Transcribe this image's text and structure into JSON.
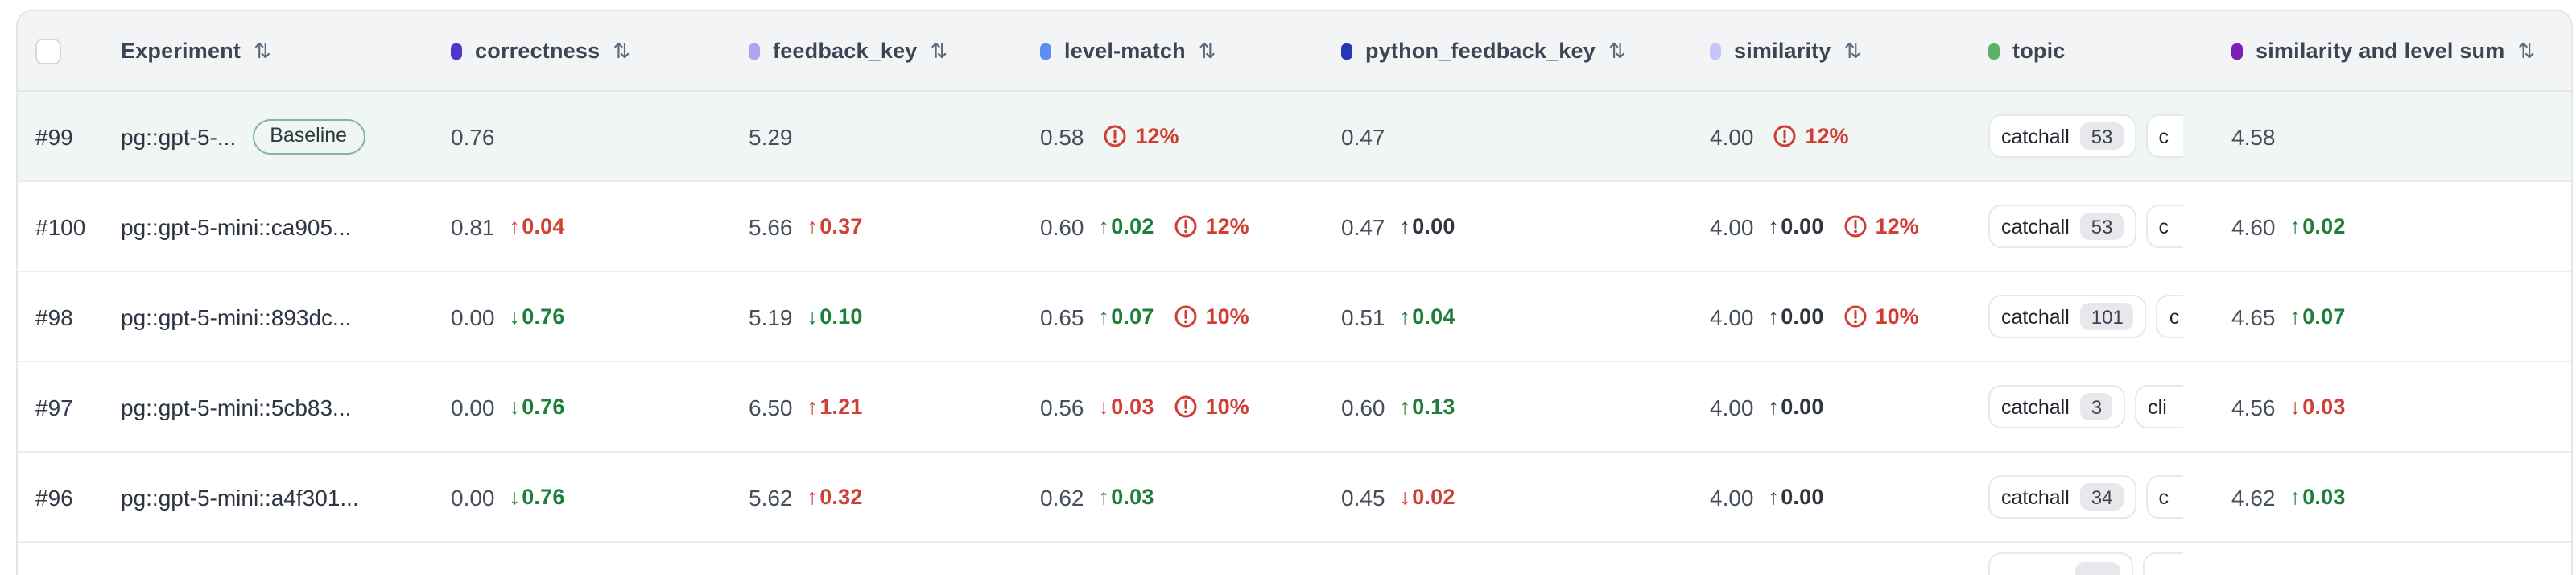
{
  "colors": {
    "negative_red": "#cf4037",
    "positive_green": "#1d7f39",
    "neutral_delta": "#30363f",
    "alert_red": "#d23d33",
    "baseline_row_bg": "#f0f6f3",
    "header_bg": "#f3f4f5"
  },
  "table": {
    "header": {
      "select_all_checkbox": true,
      "sort_icon": "⇅",
      "columns": [
        {
          "key": "experiment",
          "label": "Experiment",
          "dot": null,
          "sortable": true
        },
        {
          "key": "correctness",
          "label": "correctness",
          "dot": "#5235c9",
          "sortable": true
        },
        {
          "key": "feedback_key",
          "label": "feedback_key",
          "dot": "#b2a3ef",
          "sortable": true
        },
        {
          "key": "level_match",
          "label": "level-match",
          "dot": "#5b8ef2",
          "sortable": true
        },
        {
          "key": "python_feedback_key",
          "label": "python_feedback_key",
          "dot": "#2936b5",
          "sortable": true
        },
        {
          "key": "similarity",
          "label": "similarity",
          "dot": "#c8c6f7",
          "sortable": true
        },
        {
          "key": "topic",
          "label": "topic",
          "dot": "#5cb167",
          "sortable": false
        },
        {
          "key": "sum",
          "label": "similarity and level sum",
          "dot": "#7b1fb3",
          "sortable": true
        }
      ]
    },
    "rows": [
      {
        "num": "#99",
        "experiment": "pg::gpt-5-...",
        "baseline_badge": "Baseline",
        "correctness": {
          "value": "0.76"
        },
        "feedback_key": {
          "value": "5.29"
        },
        "level_match": {
          "value": "0.58",
          "alert": "12%"
        },
        "python_feedback_key": {
          "value": "0.47"
        },
        "similarity": {
          "value": "4.00",
          "alert": "12%"
        },
        "topics": [
          {
            "label": "catchall",
            "count": "53"
          },
          {
            "label": "c",
            "clipped": true
          }
        ],
        "sum": {
          "value": "4.58"
        }
      },
      {
        "num": "#100",
        "experiment": "pg::gpt-5-mini::ca905...",
        "correctness": {
          "value": "0.81",
          "dir": "up",
          "delta": "0.04",
          "tone": "bad"
        },
        "feedback_key": {
          "value": "5.66",
          "dir": "up",
          "delta": "0.37",
          "tone": "bad"
        },
        "level_match": {
          "value": "0.60",
          "dir": "up",
          "delta": "0.02",
          "tone": "good",
          "alert": "12%"
        },
        "python_feedback_key": {
          "value": "0.47",
          "dir": "up",
          "delta": "0.00",
          "tone": "flat"
        },
        "similarity": {
          "value": "4.00",
          "dir": "up",
          "delta": "0.00",
          "tone": "flat",
          "alert": "12%"
        },
        "topics": [
          {
            "label": "catchall",
            "count": "53"
          },
          {
            "label": "c",
            "clipped": true
          }
        ],
        "sum": {
          "value": "4.60",
          "dir": "up",
          "delta": "0.02",
          "tone": "good"
        }
      },
      {
        "num": "#98",
        "experiment": "pg::gpt-5-mini::893dc...",
        "correctness": {
          "value": "0.00",
          "dir": "down",
          "delta": "0.76",
          "tone": "good"
        },
        "feedback_key": {
          "value": "5.19",
          "dir": "down",
          "delta": "0.10",
          "tone": "good"
        },
        "level_match": {
          "value": "0.65",
          "dir": "up",
          "delta": "0.07",
          "tone": "good",
          "alert": "10%"
        },
        "python_feedback_key": {
          "value": "0.51",
          "dir": "up",
          "delta": "0.04",
          "tone": "good"
        },
        "similarity": {
          "value": "4.00",
          "dir": "up",
          "delta": "0.00",
          "tone": "flat",
          "alert": "10%"
        },
        "topics": [
          {
            "label": "catchall",
            "count": "101"
          },
          {
            "label": "c",
            "clipped": true
          }
        ],
        "sum": {
          "value": "4.65",
          "dir": "up",
          "delta": "0.07",
          "tone": "good"
        }
      },
      {
        "num": "#97",
        "experiment": "pg::gpt-5-mini::5cb83...",
        "correctness": {
          "value": "0.00",
          "dir": "down",
          "delta": "0.76",
          "tone": "good"
        },
        "feedback_key": {
          "value": "6.50",
          "dir": "up",
          "delta": "1.21",
          "tone": "bad"
        },
        "level_match": {
          "value": "0.56",
          "dir": "down",
          "delta": "0.03",
          "tone": "bad",
          "alert": "10%"
        },
        "python_feedback_key": {
          "value": "0.60",
          "dir": "up",
          "delta": "0.13",
          "tone": "good"
        },
        "similarity": {
          "value": "4.00",
          "dir": "up",
          "delta": "0.00",
          "tone": "flat"
        },
        "topics": [
          {
            "label": "catchall",
            "count": "3"
          },
          {
            "label": "cli",
            "clipped": true
          }
        ],
        "sum": {
          "value": "4.56",
          "dir": "down",
          "delta": "0.03",
          "tone": "bad"
        }
      },
      {
        "num": "#96",
        "experiment": "pg::gpt-5-mini::a4f301...",
        "correctness": {
          "value": "0.00",
          "dir": "down",
          "delta": "0.76",
          "tone": "good"
        },
        "feedback_key": {
          "value": "5.62",
          "dir": "up",
          "delta": "0.32",
          "tone": "bad"
        },
        "level_match": {
          "value": "0.62",
          "dir": "up",
          "delta": "0.03",
          "tone": "good"
        },
        "python_feedback_key": {
          "value": "0.45",
          "dir": "down",
          "delta": "0.02",
          "tone": "bad"
        },
        "similarity": {
          "value": "4.00",
          "dir": "up",
          "delta": "0.00",
          "tone": "flat"
        },
        "topics": [
          {
            "label": "catchall",
            "count": "34"
          },
          {
            "label": "c",
            "clipped": true
          }
        ],
        "sum": {
          "value": "4.62",
          "dir": "up",
          "delta": "0.03",
          "tone": "good"
        }
      },
      {
        "partial": true
      }
    ]
  }
}
